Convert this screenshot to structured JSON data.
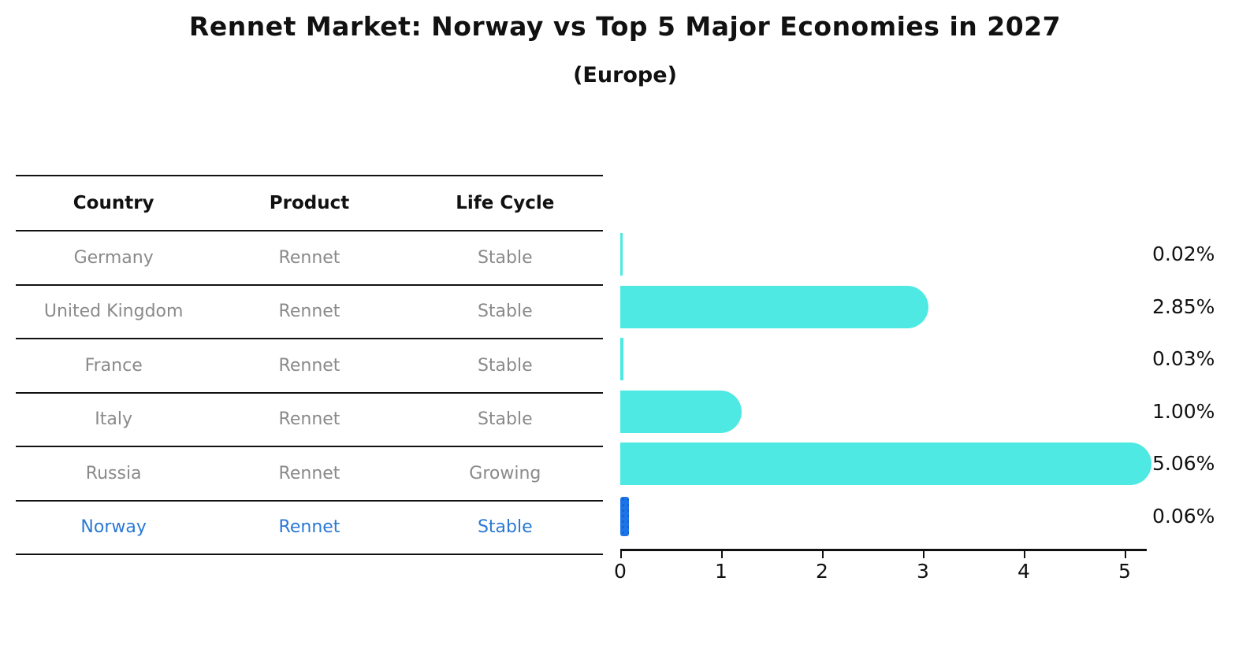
{
  "title": "Rennet Market: Norway vs Top 5 Major Economies in 2027",
  "subtitle": "(Europe)",
  "table": {
    "headers": {
      "country": "Country",
      "product": "Product",
      "life_cycle": "Life Cycle"
    },
    "rows": [
      {
        "country": "Germany",
        "product": "Rennet",
        "life_cycle": "Stable",
        "highlight": false
      },
      {
        "country": "United Kingdom",
        "product": "Rennet",
        "life_cycle": "Stable",
        "highlight": false
      },
      {
        "country": "France",
        "product": "Rennet",
        "life_cycle": "Stable",
        "highlight": false
      },
      {
        "country": "Italy",
        "product": "Rennet",
        "life_cycle": "Stable",
        "highlight": false
      },
      {
        "country": "Russia",
        "product": "Rennet",
        "life_cycle": "Growing",
        "highlight": false
      },
      {
        "country": "Norway",
        "product": "Rennet",
        "life_cycle": "Stable",
        "highlight": true
      }
    ]
  },
  "chart_data": {
    "type": "bar",
    "orientation": "horizontal",
    "categories": [
      "Germany",
      "United Kingdom",
      "France",
      "Italy",
      "Russia",
      "Norway"
    ],
    "values": [
      0.02,
      2.85,
      0.03,
      1.0,
      5.06,
      0.06
    ],
    "value_labels": [
      "0.02%",
      "2.85%",
      "0.03%",
      "1.00%",
      "5.06%",
      "0.06%"
    ],
    "x_ticks": [
      "0",
      "1",
      "2",
      "3",
      "4",
      "5"
    ],
    "xlim": [
      0,
      5.33
    ],
    "xlabel": "",
    "ylabel": "",
    "grid": false,
    "legend": "none",
    "bar_color": "#4de9e2",
    "highlight_color": "#1c74e8",
    "highlight_index": 5,
    "highlight_text_color": "#2b79d4"
  }
}
